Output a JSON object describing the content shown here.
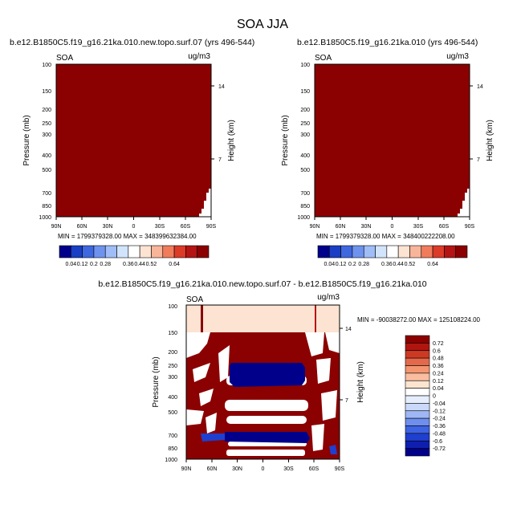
{
  "figure": {
    "title": "SOA JJA"
  },
  "palettes": {
    "top": [
      "#00008b",
      "#1a3fc4",
      "#3f68df",
      "#6e93ee",
      "#9fbdf7",
      "#d2e4fb",
      "#ffffff",
      "#fde3d2",
      "#f8b59a",
      "#f07c5c",
      "#dc3b28",
      "#b51414",
      "#8b0000"
    ],
    "diff": [
      "#00008b",
      "#0e1fb0",
      "#1f3fcf",
      "#3f64e3",
      "#6e8fee",
      "#9fb7f5",
      "#cad9fa",
      "#e6eefd",
      "#ffffff",
      "#fde4d0",
      "#f9bda0",
      "#f3956f",
      "#e4694a",
      "#cd3a24",
      "#b0160f",
      "#8b0000"
    ]
  },
  "chart_data": [
    {
      "type": "heatmap",
      "panel": "top-left",
      "title": "b.e12.B1850C5.f19_g16.21ka.010.new.topo.surf.07 (yrs 496-544)",
      "left_label": "SOA",
      "right_label": "ug/m3",
      "ylabel": "Pressure (mb)",
      "ylabel_right": "Height (km)",
      "x_ticks": [
        "90N",
        "60N",
        "30N",
        "0",
        "30S",
        "60S",
        "90S"
      ],
      "y_ticks": [
        "100",
        "150",
        "200",
        "250",
        "300",
        "400",
        "500",
        "700",
        "850",
        "1000"
      ],
      "y_right_ticks": [
        "14",
        "7"
      ],
      "fill_color": "#8b0000",
      "stats": "MIN = 1799379328.00   MAX = 348399632384.00",
      "colorbar_labels": [
        "0.04",
        "0.12",
        "0.2",
        "0.28",
        "0.36",
        "0.44",
        "0.52",
        "0.64"
      ]
    },
    {
      "type": "heatmap",
      "panel": "top-right",
      "title": "b.e12.B1850C5.f19_g16.21ka.010 (yrs 496-544)",
      "left_label": "SOA",
      "right_label": "ug/m3",
      "ylabel": "Pressure (mb)",
      "ylabel_right": "Height (km)",
      "x_ticks": [
        "90N",
        "60N",
        "30N",
        "0",
        "30S",
        "60S",
        "90S"
      ],
      "y_ticks": [
        "100",
        "150",
        "200",
        "250",
        "300",
        "400",
        "500",
        "700",
        "850",
        "1000"
      ],
      "y_right_ticks": [
        "14",
        "7"
      ],
      "fill_color": "#8b0000",
      "stats": "MIN = 1799379328.00   MAX = 348400222208.00",
      "colorbar_labels": [
        "0.04",
        "0.12",
        "0.2",
        "0.28",
        "0.36",
        "0.44",
        "0.52",
        "0.64"
      ]
    },
    {
      "type": "heatmap",
      "panel": "bottom-diff",
      "title": "b.e12.B1850C5.f19_g16.21ka.010.new.topo.surf.07 - b.e12.B1850C5.f19_g16.21ka.010",
      "left_label": "SOA",
      "right_label": "ug/m3",
      "ylabel": "Pressure (mb)",
      "ylabel_right": "Height (km)",
      "x_ticks": [
        "90N",
        "60N",
        "30N",
        "0",
        "30S",
        "60S",
        "90S"
      ],
      "y_ticks": [
        "100",
        "150",
        "200",
        "250",
        "300",
        "400",
        "500",
        "700",
        "850",
        "1000"
      ],
      "y_right_ticks": [
        "14",
        "7"
      ],
      "stats": "MIN = -90038272.00   MAX = 125108224.00",
      "colorbar_labels": [
        "0.72",
        "0.6",
        "0.48",
        "0.36",
        "0.24",
        "0.12",
        "0.04",
        "0",
        "-0.04",
        "-0.12",
        "-0.24",
        "-0.36",
        "-0.48",
        "-0.6",
        "-0.72"
      ]
    }
  ]
}
